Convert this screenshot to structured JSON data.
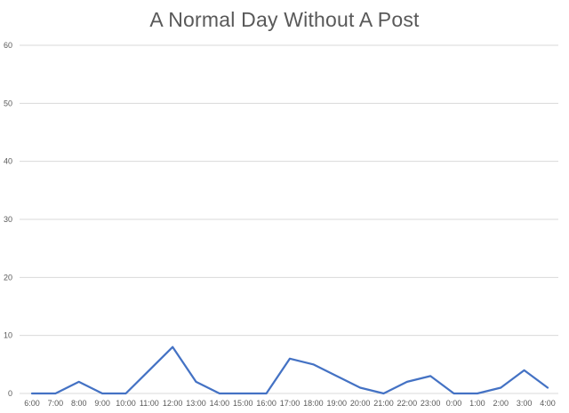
{
  "chart_data": {
    "type": "line",
    "title": "A Normal Day Without A Post",
    "xlabel": "",
    "ylabel": "",
    "ylim": [
      0,
      60
    ],
    "yticks": [
      0,
      10,
      20,
      30,
      40,
      50,
      60
    ],
    "grid": true,
    "legend": "none",
    "categories": [
      "6:00",
      "7:00",
      "8:00",
      "9:00",
      "10:00",
      "11:00",
      "12:00",
      "13:00",
      "14:00",
      "15:00",
      "16:00",
      "17:00",
      "18:00",
      "19:00",
      "20:00",
      "21:00",
      "22:00",
      "23:00",
      "0:00",
      "1:00",
      "2:00",
      "3:00",
      "4:00"
    ],
    "series": [
      {
        "values": [
          0,
          0,
          2,
          0,
          0,
          4,
          8,
          2,
          0,
          0,
          0,
          6,
          5,
          3,
          1,
          0,
          2,
          3,
          0,
          0,
          1,
          4,
          1
        ],
        "color": "#4472C4"
      }
    ],
    "colors": {
      "line": "#4472C4",
      "grid": "#D9D9D9",
      "text": "#595959"
    }
  }
}
